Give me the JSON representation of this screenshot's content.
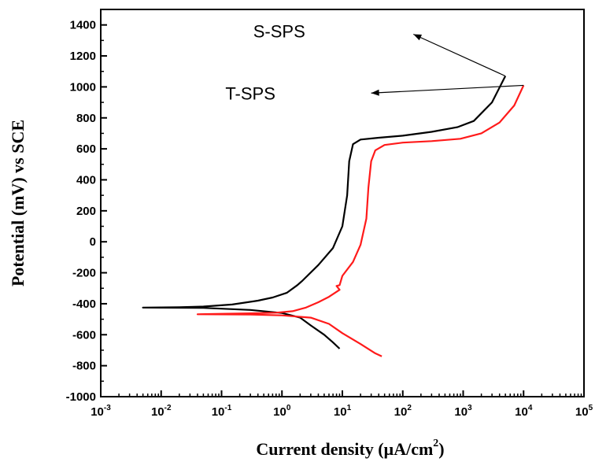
{
  "chart_data": {
    "type": "line",
    "title": "",
    "xlabel_main": "Current density (µA/cm",
    "xlabel_sup": "2",
    "xlabel_close": ")",
    "ylabel": "Potential (mV) vs SCE",
    "xscale": "log",
    "xlim": [
      0.001,
      100000
    ],
    "ylim": [
      -1000,
      1500
    ],
    "xticks": [
      {
        "value": 0.001,
        "base": "10",
        "exp": "-3"
      },
      {
        "value": 0.01,
        "base": "10",
        "exp": "-2"
      },
      {
        "value": 0.1,
        "base": "10",
        "exp": "-1"
      },
      {
        "value": 1,
        "base": "10",
        "exp": "0"
      },
      {
        "value": 10,
        "base": "10",
        "exp": "1"
      },
      {
        "value": 100,
        "base": "10",
        "exp": "2"
      },
      {
        "value": 1000,
        "base": "10",
        "exp": "3"
      },
      {
        "value": 10000,
        "base": "10",
        "exp": "4"
      },
      {
        "value": 100000,
        "base": "10",
        "exp": "5"
      }
    ],
    "yticks": [
      {
        "value": 1400,
        "label": "1400"
      },
      {
        "value": 1200,
        "label": "1200"
      },
      {
        "value": 1000,
        "label": "1000"
      },
      {
        "value": 800,
        "label": "800"
      },
      {
        "value": 600,
        "label": "600"
      },
      {
        "value": 400,
        "label": "400"
      },
      {
        "value": 200,
        "label": "200"
      },
      {
        "value": 0,
        "label": "0"
      },
      {
        "value": -200,
        "label": "-200"
      },
      {
        "value": -400,
        "label": "-400"
      },
      {
        "value": -600,
        "label": "-600"
      },
      {
        "value": -800,
        "label": "-800"
      },
      {
        "value": -1000,
        "label": "-1000"
      }
    ],
    "grid": false,
    "series": [
      {
        "name": "S-SPS",
        "color": "#000000",
        "label_anchor": {
          "x": 5000,
          "y": 1070
        },
        "label_pos": {
          "x": 0.9,
          "y": 1360
        },
        "label_arrow_to": {
          "x": 150,
          "y": 1340
        },
        "points": [
          [
            5000,
            1070
          ],
          [
            3000,
            900
          ],
          [
            1500,
            780
          ],
          [
            800,
            740
          ],
          [
            300,
            710
          ],
          [
            100,
            685
          ],
          [
            40,
            672
          ],
          [
            20,
            660
          ],
          [
            15,
            630
          ],
          [
            13,
            520
          ],
          [
            12,
            300
          ],
          [
            10,
            100
          ],
          [
            7,
            -40
          ],
          [
            4,
            -150
          ],
          [
            2.2,
            -250
          ],
          [
            1.8,
            -280
          ],
          [
            1.2,
            -330
          ],
          [
            0.7,
            -360
          ],
          [
            0.4,
            -380
          ],
          [
            0.15,
            -405
          ],
          [
            0.05,
            -418
          ],
          [
            0.02,
            -423
          ],
          [
            0.005,
            -425
          ],
          [
            0.05,
            -427
          ],
          [
            0.3,
            -440
          ],
          [
            1,
            -460
          ],
          [
            2,
            -490
          ],
          [
            3,
            -540
          ],
          [
            5,
            -600
          ],
          [
            7,
            -650
          ],
          [
            9,
            -690
          ]
        ]
      },
      {
        "name": "T-SPS",
        "color": "#ff1a1a",
        "label_anchor": {
          "x": 10000,
          "y": 1010
        },
        "label_pos": {
          "x": 0.3,
          "y": 960
        },
        "label_arrow_to": {
          "x": 30,
          "y": 960
        },
        "points": [
          [
            10000,
            1010
          ],
          [
            7000,
            880
          ],
          [
            4000,
            770
          ],
          [
            2000,
            700
          ],
          [
            900,
            665
          ],
          [
            300,
            650
          ],
          [
            100,
            640
          ],
          [
            50,
            625
          ],
          [
            35,
            590
          ],
          [
            30,
            520
          ],
          [
            27,
            350
          ],
          [
            25,
            150
          ],
          [
            20,
            -20
          ],
          [
            15,
            -130
          ],
          [
            10,
            -220
          ],
          [
            9,
            -280
          ],
          [
            8,
            -285
          ],
          [
            9,
            -310
          ],
          [
            6,
            -355
          ],
          [
            4,
            -390
          ],
          [
            2.5,
            -425
          ],
          [
            1.5,
            -448
          ],
          [
            0.8,
            -458
          ],
          [
            0.3,
            -462
          ],
          [
            0.1,
            -465
          ],
          [
            0.04,
            -468
          ],
          [
            0.3,
            -470
          ],
          [
            1,
            -475
          ],
          [
            3,
            -490
          ],
          [
            6,
            -530
          ],
          [
            10,
            -590
          ],
          [
            20,
            -660
          ],
          [
            35,
            -720
          ],
          [
            45,
            -740
          ]
        ]
      }
    ]
  }
}
